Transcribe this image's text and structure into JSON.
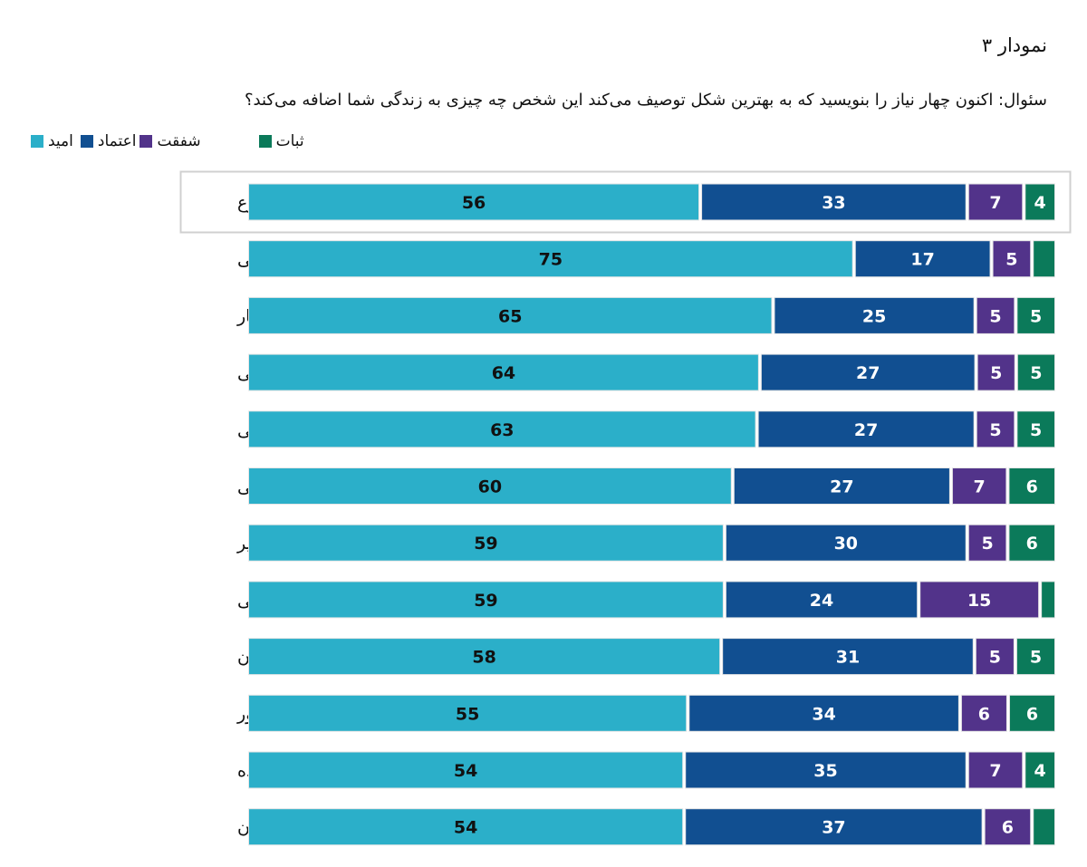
{
  "title": "نمودار ۳",
  "question": "سئوال: اکنون چهار نیاز را بنویسید که به بهترین شکل توصیف می‌کند این شخص چه چیزی به زندگی شما اضافه می‌کند؟",
  "chart_data": {
    "type": "bar",
    "orientation": "horizontal",
    "stacked": true,
    "legend_position": "top-left",
    "grid": false,
    "highlighted_category": "مجموع",
    "categories": [
      "مجموع",
      "سلبریتی",
      "آموزگار",
      "رهبران سازمانی",
      "پزشکی",
      "سیاسی",
      "مدیر",
      "مذهبی",
      "همکاران",
      "منتور",
      "خانواده",
      "دوستان"
    ],
    "series": [
      {
        "name": "امید",
        "color": "#2BAFC9",
        "label_color": "#111111",
        "values": [
          56,
          75,
          65,
          64,
          63,
          60,
          59,
          59,
          58,
          55,
          54,
          54
        ]
      },
      {
        "name": "اعتماد",
        "color": "#114F91",
        "label_color": "#ffffff",
        "values": [
          33,
          17,
          25,
          27,
          27,
          27,
          30,
          24,
          31,
          34,
          35,
          37
        ]
      },
      {
        "name": "شفقت",
        "color": "#52338A",
        "label_color": "#ffffff",
        "values": [
          7,
          5,
          5,
          5,
          5,
          7,
          5,
          15,
          5,
          6,
          7,
          6
        ]
      },
      {
        "name": "ثبات",
        "color": "#0B7A5A",
        "label_color": "#ffffff",
        "values": [
          4,
          3,
          5,
          5,
          5,
          6,
          6,
          2,
          5,
          6,
          4,
          3
        ],
        "labeled": [
          true,
          false,
          true,
          true,
          true,
          true,
          true,
          false,
          true,
          true,
          true,
          false
        ]
      }
    ]
  }
}
